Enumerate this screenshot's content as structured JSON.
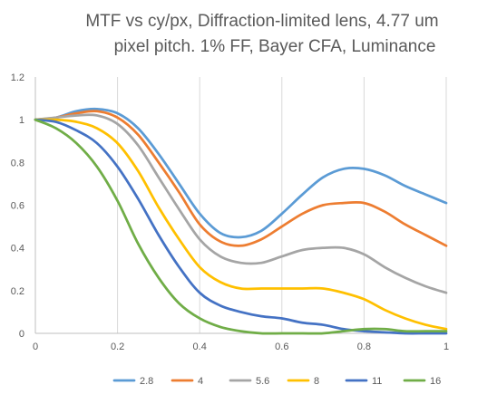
{
  "chart_data": {
    "type": "line",
    "title_lines": [
      "MTF vs cy/px, Diffraction-limited lens, 4.77 um",
      "pixel pitch. 1% FF, Bayer CFA, Luminance"
    ],
    "xlabel": "",
    "ylabel": "",
    "xlim": [
      0,
      1
    ],
    "ylim": [
      0,
      1.2
    ],
    "x_ticks": [
      "0",
      "0.2",
      "0.4",
      "0.6",
      "0.8",
      "1"
    ],
    "y_ticks": [
      "0",
      "0.2",
      "0.4",
      "0.6",
      "0.8",
      "1",
      "1.2"
    ],
    "grid": "vertical",
    "legend_position": "bottom",
    "x": [
      0,
      0.05,
      0.1,
      0.15,
      0.2,
      0.25,
      0.3,
      0.35,
      0.4,
      0.45,
      0.5,
      0.55,
      0.6,
      0.65,
      0.7,
      0.75,
      0.8,
      0.85,
      0.9,
      0.95,
      1.0
    ],
    "series": [
      {
        "name": "2.8",
        "color": "#5B9BD5",
        "values": [
          1.0,
          1.01,
          1.04,
          1.05,
          1.03,
          0.96,
          0.84,
          0.7,
          0.56,
          0.47,
          0.45,
          0.48,
          0.56,
          0.65,
          0.73,
          0.77,
          0.77,
          0.74,
          0.69,
          0.65,
          0.61
        ]
      },
      {
        "name": "4",
        "color": "#ED7D31",
        "values": [
          1.0,
          1.01,
          1.03,
          1.04,
          1.01,
          0.93,
          0.8,
          0.66,
          0.51,
          0.43,
          0.41,
          0.44,
          0.5,
          0.56,
          0.6,
          0.61,
          0.61,
          0.57,
          0.51,
          0.46,
          0.41
        ]
      },
      {
        "name": "5.6",
        "color": "#A5A5A5",
        "values": [
          1.0,
          1.01,
          1.02,
          1.02,
          0.98,
          0.88,
          0.73,
          0.58,
          0.44,
          0.36,
          0.33,
          0.33,
          0.36,
          0.39,
          0.4,
          0.4,
          0.37,
          0.31,
          0.26,
          0.22,
          0.19
        ]
      },
      {
        "name": "8",
        "color": "#FFC000",
        "values": [
          1.0,
          1.0,
          0.99,
          0.96,
          0.89,
          0.76,
          0.59,
          0.44,
          0.31,
          0.24,
          0.21,
          0.21,
          0.21,
          0.21,
          0.21,
          0.19,
          0.16,
          0.11,
          0.07,
          0.04,
          0.02
        ]
      },
      {
        "name": "11",
        "color": "#4472C4",
        "values": [
          1.0,
          0.99,
          0.95,
          0.89,
          0.78,
          0.63,
          0.46,
          0.31,
          0.19,
          0.13,
          0.1,
          0.08,
          0.07,
          0.05,
          0.04,
          0.02,
          0.01,
          0.005,
          0.0,
          0.0,
          0.0
        ]
      },
      {
        "name": "16",
        "color": "#70AD47",
        "values": [
          1.0,
          0.96,
          0.89,
          0.78,
          0.62,
          0.42,
          0.26,
          0.14,
          0.07,
          0.03,
          0.01,
          0.0,
          0.0,
          0.0,
          0.0,
          0.01,
          0.02,
          0.02,
          0.01,
          0.01,
          0.01
        ]
      }
    ]
  }
}
